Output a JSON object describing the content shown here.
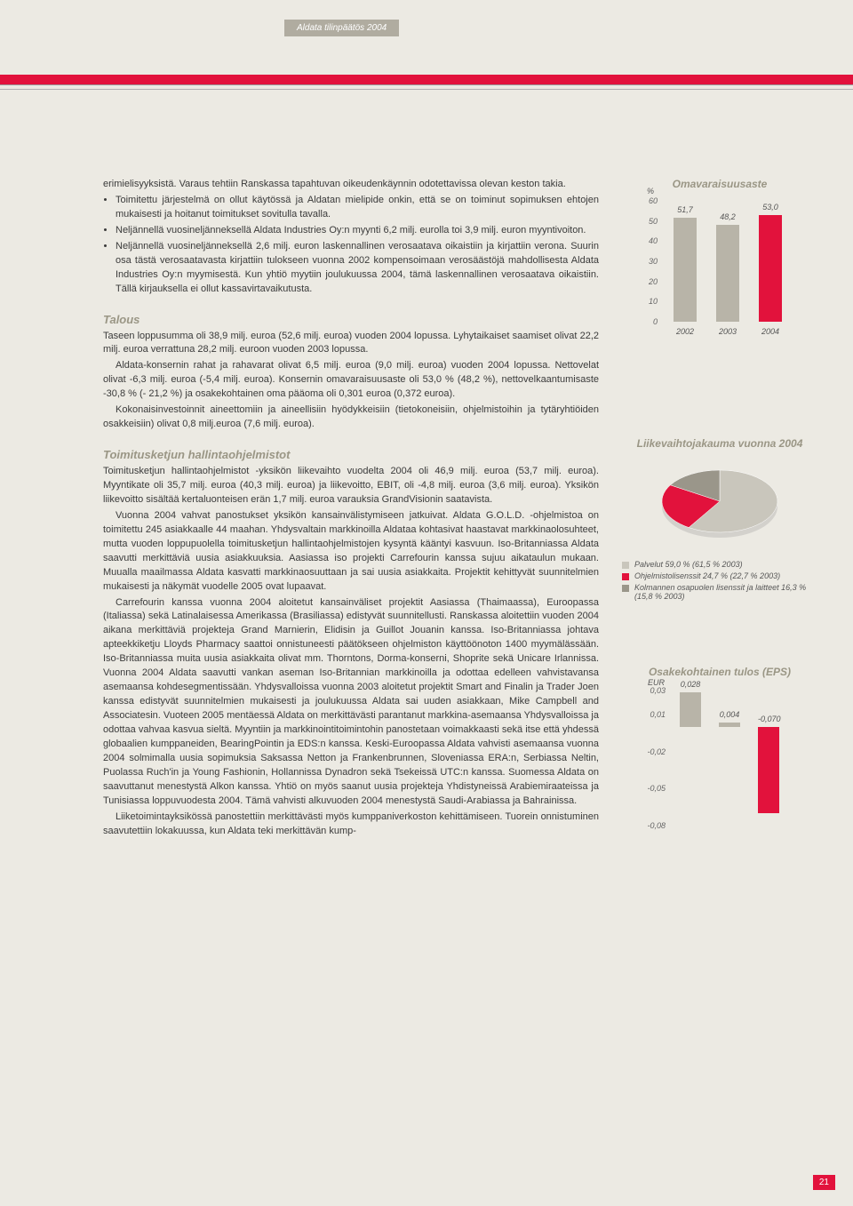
{
  "header": {
    "tab": "Aldata tilinpäätös 2004"
  },
  "body": {
    "para1": "erimielisyyksistä. Varaus tehtiin Ranskassa tapahtuvan oikeudenkäynnin odotettavissa olevan keston takia.",
    "bullets": {
      "b1": "Toimitettu järjestelmä on ollut käytössä ja Aldatan mielipide onkin, että se on toiminut sopimuksen ehtojen mukaisesti ja hoitanut toimitukset sovitulla tavalla.",
      "b2": "Neljännellä vuosineljänneksellä Aldata Industries Oy:n myynti 6,2 milj. eurolla toi 3,9 milj. euron myyntivoiton.",
      "b3": "Neljännellä vuosineljänneksellä 2,6 milj. euron laskennallinen verosaatava oikaistiin ja kirjattiin verona. Suurin osa tästä verosaatavasta kirjattiin tulokseen vuonna 2002 kompensoimaan verosäästöjä mahdollisesta Aldata Industries Oy:n myymisestä. Kun yhtiö myytiin joulukuussa 2004, tämä laskennallinen verosaatava oikaistiin. Tällä kirjauksella ei ollut kassavirtavaikutusta."
    },
    "talous": {
      "title": "Talous",
      "p1": "Taseen loppusumma oli 38,9 milj. euroa (52,6 milj. euroa) vuoden 2004 lopussa. Lyhytaikaiset saamiset olivat 22,2 milj. euroa verrattuna 28,2 milj. euroon vuoden 2003 lopussa.",
      "p2": "Aldata-konsernin rahat ja rahavarat olivat 6,5 milj. euroa (9,0 milj. euroa) vuoden 2004 lopussa. Nettovelat olivat -6,3 milj. euroa (-5,4 milj. euroa). Konsernin omavaraisuusaste oli 53,0 % (48,2 %), nettovelkaantumisaste -30,8 % (- 21,2 %) ja osakekohtainen oma pääoma oli 0,301 euroa (0,372 euroa).",
      "p3": "Kokonaisinvestoinnit aineettomiin ja aineellisiin hyödykkeisiin (tietokoneisiin, ohjelmistoihin ja tytäryhtiöiden osakkeisiin) olivat 0,8 milj.euroa (7,6 milj. euroa)."
    },
    "toimitus": {
      "title": "Toimitusketjun hallintaohjelmistot",
      "p1": "Toimitusketjun hallintaohjelmistot -yksikön liikevaihto vuodelta 2004 oli 46,9 milj. euroa (53,7 milj. euroa). Myyntikate oli 35,7 milj. euroa (40,3 milj. euroa) ja liikevoitto, EBIT, oli -4,8 milj. euroa (3,6 milj. euroa). Yksikön liikevoitto sisältää kertaluonteisen erän 1,7 milj. euroa varauksia GrandVisionin saatavista.",
      "p2": "Vuonna 2004 vahvat panostukset yksikön kansainvälistymiseen jatkuivat. Aldata G.O.L.D. -ohjelmistoa on toimitettu 245 asiakkaalle 44 maahan. Yhdysvaltain markkinoilla Aldataa kohtasivat haastavat markkinaolosuhteet, mutta vuoden loppupuolella toimitusketjun hallintaohjelmistojen kysyntä kääntyi kasvuun. Iso-Britanniassa Aldata saavutti merkittäviä uusia asiakkuuksia. Aasiassa iso projekti Carrefourin kanssa sujuu aikataulun mukaan. Muualla maailmassa Aldata kasvatti markkinaosuuttaan ja sai uusia asiakkaita. Projektit kehittyvät suunnitelmien mukaisesti ja näkymät vuodelle 2005 ovat lupaavat.",
      "p3": "Carrefourin kanssa vuonna 2004 aloitetut kansainväliset projektit Aasiassa (Thaimaassa), Euroopassa (Italiassa) sekä Latinalaisessa Amerikassa (Brasiliassa) edistyvät suunnitellusti. Ranskassa aloitettiin vuoden 2004 aikana merkittäviä projekteja Grand Marnierin, Elidisin ja Guillot Jouanin kanssa. Iso-Britanniassa johtava apteekkiketju Lloyds Pharmacy saattoi onnistuneesti päätökseen ohjelmiston käyttöönoton 1400 myymälässään. Iso-Britanniassa muita uusia asiakkaita olivat mm. Thorntons, Dorma-konserni, Shoprite sekä Unicare Irlannissa. Vuonna 2004 Aldata saavutti vankan aseman Iso-Britannian markkinoilla ja odottaa edelleen vahvistavansa asemaansa kohdesegmentissään. Yhdysvalloissa vuonna 2003 aloitetut projektit Smart and Finalin ja Trader Joen kanssa edistyvät suunnitelmien mukaisesti ja joulukuussa Aldata sai uuden asiakkaan, Mike Campbell and Associatesin. Vuoteen 2005 mentäessä Aldata on merkittävästi parantanut markkina-asemaansa Yhdysvalloissa ja odottaa vahvaa kasvua sieltä. Myyntiin ja markkinointitoimintohin panostetaan voimakkaasti sekä itse että yhdessä globaalien kumppaneiden, BearingPointin ja EDS:n kanssa. Keski-Euroopassa Aldata vahvisti asemaansa vuonna 2004 solmimalla uusia sopimuksia Saksassa Netton ja Frankenbrunnen, Sloveniassa ERA:n, Serbiassa Neltin, Puolassa Ruch'in ja Young Fashionin, Hollannissa Dynadron sekä Tsekeissä UTC:n kanssa. Suomessa Aldata on saavuttanut menestystä Alkon kanssa. Yhtiö on myös saanut uusia projekteja Yhdistyneissä Arabiemiraateissa ja Tunisiassa loppuvuodesta 2004. Tämä vahvisti alkuvuoden 2004 menestystä Saudi-Arabiassa ja Bahrainissa.",
      "p4": "Liiketoimintayksikössä panostettiin merkittävästi myös kumppaniverkoston kehittämiseen. Tuorein onnistuminen saavutettiin lokakuussa, kun Aldata teki merkittävän kump-"
    }
  },
  "chart1": {
    "title": "Omavaraisuusaste",
    "y_title": "%",
    "y_ticks": [
      "0",
      "10",
      "20",
      "30",
      "40",
      "50",
      "60"
    ],
    "bars": [
      {
        "label": "2002",
        "value": "51,7",
        "h": 51.7,
        "color": "#b8b4a8"
      },
      {
        "label": "2003",
        "value": "48,2",
        "h": 48.2,
        "color": "#b8b4a8"
      },
      {
        "label": "2004",
        "value": "53,0",
        "h": 53.0,
        "color": "#e2123c"
      }
    ],
    "ymax": 60
  },
  "pie": {
    "title": "Liikevaihtojakauma vuonna 2004",
    "slices": [
      {
        "label": "Palvelut 59,0 % (61,5 % 2003)",
        "color": "#c9c6bc",
        "pct": 59.0
      },
      {
        "label": "Ohjelmistolisenssit 24,7 % (22,7 % 2003)",
        "color": "#e2123c",
        "pct": 24.7
      },
      {
        "label": "Kolmannen osapuolen lisenssit ja laitteet 16,3 % (15,8 % 2003)",
        "color": "#9a968a",
        "pct": 16.3
      }
    ]
  },
  "eps": {
    "title": "Osakekohtainen tulos (EPS)",
    "y_title": "EUR",
    "y_ticks": [
      {
        "v": "0,03",
        "pos": 0.03
      },
      {
        "v": "0,01",
        "pos": 0.01
      },
      {
        "v": "-0,02",
        "pos": -0.02
      },
      {
        "v": "-0,05",
        "pos": -0.05
      },
      {
        "v": "-0,08",
        "pos": -0.08
      }
    ],
    "bars": [
      {
        "value": "0,028",
        "h": 0.028,
        "color": "#b8b4a8"
      },
      {
        "value": "0,004",
        "h": 0.004,
        "color": "#b8b4a8"
      },
      {
        "value": "-0,070",
        "h": -0.07,
        "color": "#e2123c"
      }
    ],
    "ymin": -0.08,
    "ymax": 0.03
  },
  "page_number": "21"
}
